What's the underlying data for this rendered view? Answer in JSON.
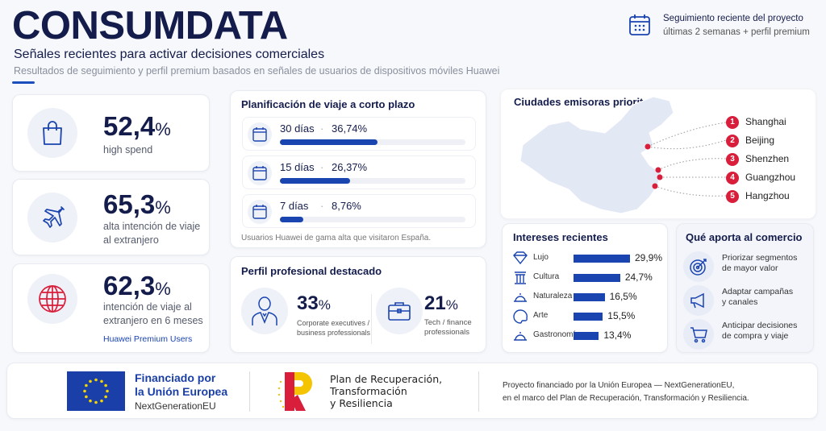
{
  "header": {
    "title": "CONSUMDATA",
    "subtitle": "Señales recientes para activar decisiones comerciales",
    "description": "Resultados de seguimiento y perfil premium basados en señales de usuarios de dispositivos móviles Huawei",
    "badge_line1": "Seguimiento reciente del proyecto",
    "badge_line2": "últimas 2 semanas + perfil premium",
    "badge_icon": "calendar-icon"
  },
  "colors": {
    "navy": "#141c4c",
    "accent": "#1a44b0",
    "red": "#d81e3a"
  },
  "stats": [
    {
      "value": "52,4",
      "unit": "%",
      "label": "high spend",
      "icon": "shopping-bag-icon"
    },
    {
      "value": "65,3",
      "unit": "%",
      "label": "alta intención de viaje al extranjero",
      "icon": "airplane-icon"
    },
    {
      "value": "62,3",
      "unit": "%",
      "label": "intención de viaje al extranjero en 6 meses",
      "note": "Huawei Premium Users",
      "icon": "globe-icon"
    }
  ],
  "trip": {
    "title": "Planificación de viaje a corto plazo",
    "items": [
      {
        "label": "30 días",
        "sep": "·",
        "value": "36,74%",
        "pct": 36.74
      },
      {
        "label": "15 días",
        "sep": "·",
        "value": "26,37%",
        "pct": 26.37
      },
      {
        "label": "7 días",
        "sep": "·",
        "value": "8,76%",
        "pct": 8.76
      }
    ],
    "footnote": "Usuarios Huawei de gama alta que visitaron España."
  },
  "profile": {
    "title": "Perfil profesional destacado",
    "items": [
      {
        "value": "33",
        "unit": "%",
        "label1": "Corporate executives /",
        "label2": "business professionals",
        "icon": "businessman-icon"
      },
      {
        "value": "21",
        "unit": "%",
        "label1": "Tech / finance",
        "label2": "professionals",
        "icon": "briefcase-icon"
      }
    ]
  },
  "cities": {
    "title": "Ciudades emisoras prioritarias",
    "items": [
      {
        "rank": "1",
        "name": "Shanghai"
      },
      {
        "rank": "2",
        "name": "Beijing"
      },
      {
        "rank": "3",
        "name": "Shenzhen"
      },
      {
        "rank": "4",
        "name": "Guangzhou"
      },
      {
        "rank": "5",
        "name": "Hangzhou"
      }
    ]
  },
  "interests": {
    "title": "Intereses recientes",
    "items": [
      {
        "name": "Lujo",
        "value": "29,9%",
        "pct": 29.9,
        "icon": "diamond-icon"
      },
      {
        "name": "Cultura",
        "value": "24,7%",
        "pct": 24.7,
        "icon": "column-icon"
      },
      {
        "name": "Naturaleza",
        "value": "16,5%",
        "pct": 16.5,
        "icon": "cloche-icon"
      },
      {
        "name": "Arte",
        "value": "15,5%",
        "pct": 15.5,
        "icon": "palette-icon"
      },
      {
        "name": "Gastronomía",
        "value": "13,4%",
        "pct": 13.4,
        "icon": "cloche-icon"
      }
    ]
  },
  "benefits": {
    "title": "Qué aporta al comercio",
    "items": [
      {
        "line1": "Priorizar segmentos",
        "line2": "de mayor valor",
        "icon": "target-icon"
      },
      {
        "line1": "Adaptar campañas",
        "line2": "y canales",
        "icon": "megaphone-icon"
      },
      {
        "line1": "Anticipar decisiones",
        "line2": "de compra y viaje",
        "icon": "cart-icon"
      }
    ]
  },
  "footer": {
    "eu_line1": "Financiado por",
    "eu_line2": "la Unión Europea",
    "eu_line3": "NextGenerationEU",
    "prtr_line1": "Plan de Recuperación,",
    "prtr_line2": "Transformación",
    "prtr_line3": "y Resiliencia",
    "note1": "Proyecto financiado por la Unión Europea — NextGenerationEU,",
    "note2": "en el marco del Plan de Recuperación, Transformación y Resiliencia."
  }
}
